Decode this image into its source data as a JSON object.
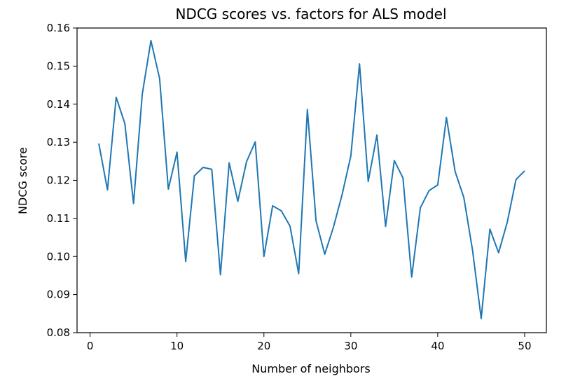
{
  "chart_data": {
    "type": "line",
    "title": "NDCG scores vs. factors for ALS model",
    "xlabel": "Number of neighbors",
    "ylabel": "NDCG score",
    "xlim": [
      -1.5,
      52.5
    ],
    "ylim": [
      0.08,
      0.16
    ],
    "grid": false,
    "x_ticks": [
      0,
      10,
      20,
      30,
      40,
      50
    ],
    "x_tick_labels": [
      "0",
      "10",
      "20",
      "30",
      "40",
      "50"
    ],
    "y_ticks": [
      0.08,
      0.09,
      0.1,
      0.11,
      0.12,
      0.13,
      0.14,
      0.15,
      0.16
    ],
    "y_tick_labels": [
      "0.08",
      "0.09",
      "0.10",
      "0.11",
      "0.12",
      "0.13",
      "0.14",
      "0.15",
      "0.16"
    ],
    "line_color": "#1f77b4",
    "series": [
      {
        "x": [
          1,
          2,
          3,
          4,
          5,
          6,
          7,
          8,
          9,
          10,
          11,
          12,
          13,
          14,
          15,
          16,
          17,
          18,
          19,
          20,
          21,
          22,
          23,
          24,
          25,
          26,
          27,
          28,
          29,
          30,
          31,
          32,
          33,
          34,
          35,
          36,
          37,
          38,
          39,
          40,
          41,
          42,
          43,
          44,
          45,
          46,
          47,
          48,
          49,
          50
        ],
        "values": [
          0.1297,
          0.1175,
          0.1418,
          0.1349,
          0.1139,
          0.1426,
          0.1567,
          0.1467,
          0.1177,
          0.1274,
          0.0987,
          0.1212,
          0.1234,
          0.1229,
          0.0952,
          0.1246,
          0.1145,
          0.1249,
          0.1301,
          0.1,
          0.1133,
          0.112,
          0.108,
          0.0955,
          0.1386,
          0.1093,
          0.1006,
          0.1077,
          0.1163,
          0.1264,
          0.1506,
          0.1197,
          0.1319,
          0.1079,
          0.1252,
          0.1206,
          0.0946,
          0.1128,
          0.1173,
          0.1188,
          0.1365,
          0.1223,
          0.1155,
          0.1017,
          0.0837,
          0.1072,
          0.101,
          0.109,
          0.1202,
          0.1225
        ]
      }
    ]
  }
}
